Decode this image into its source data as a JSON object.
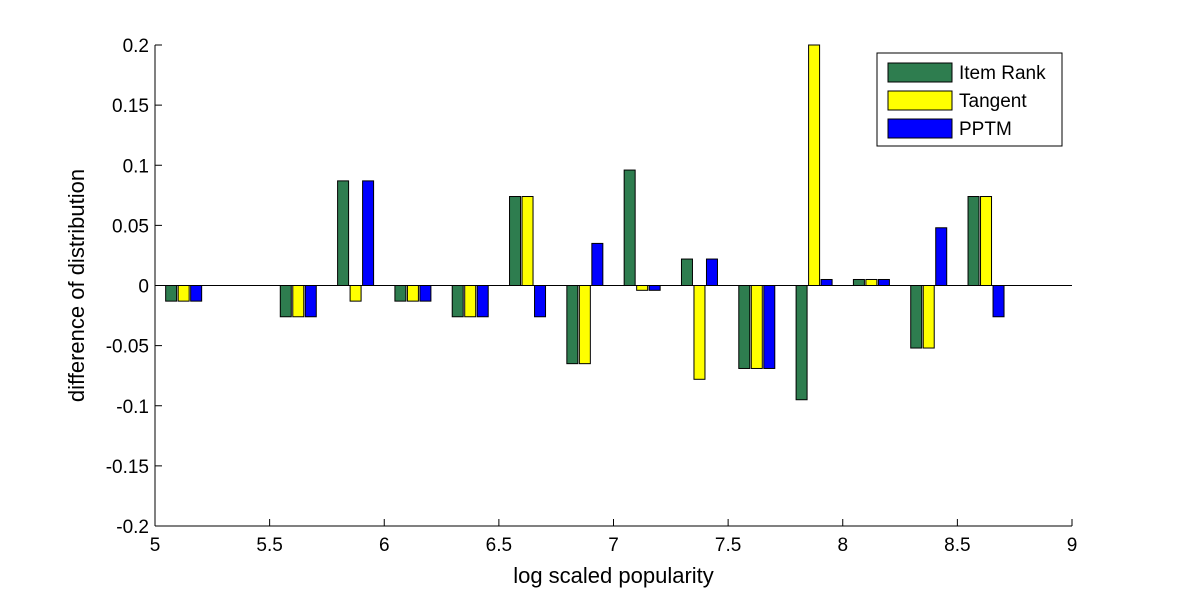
{
  "chart_data": {
    "type": "bar",
    "title": "",
    "xlabel": "log scaled popularity",
    "ylabel": "difference of distribution",
    "xlim": [
      5,
      9
    ],
    "ylim": [
      -0.2,
      0.2
    ],
    "xticks": [
      "5",
      "5.5",
      "6",
      "6.5",
      "7",
      "7.5",
      "8",
      "8.5",
      "9"
    ],
    "yticks": [
      "-0.2",
      "-0.15",
      "-0.1",
      "-0.05",
      "0",
      "0.05",
      "0.1",
      "0.15",
      "0.2"
    ],
    "xtick_values": [
      5,
      5.5,
      6,
      6.5,
      7,
      7.5,
      8,
      8.5,
      9
    ],
    "ytick_values": [
      -0.2,
      -0.15,
      -0.1,
      -0.05,
      0,
      0.05,
      0.1,
      0.15,
      0.2
    ],
    "grid": false,
    "legend_position": "top-right",
    "x": [
      5.125,
      5.625,
      5.875,
      6.125,
      6.375,
      6.625,
      6.875,
      7.125,
      7.375,
      7.625,
      7.875,
      8.125,
      8.375,
      8.625
    ],
    "series": [
      {
        "name": "Item Rank",
        "color": "#2e7d4f",
        "values": [
          -0.013,
          -0.026,
          0.087,
          -0.013,
          -0.026,
          0.074,
          -0.065,
          0.096,
          0.022,
          -0.069,
          -0.095,
          0.005,
          -0.052,
          0.074
        ]
      },
      {
        "name": "Tangent",
        "color": "#ffff00",
        "values": [
          -0.013,
          -0.026,
          -0.013,
          -0.013,
          -0.026,
          0.074,
          -0.065,
          -0.004,
          -0.078,
          -0.069,
          0.2,
          0.005,
          -0.052,
          0.074
        ]
      },
      {
        "name": "PPTM",
        "color": "#0000ff",
        "values": [
          -0.013,
          -0.026,
          0.087,
          -0.013,
          -0.026,
          -0.026,
          0.035,
          -0.004,
          0.022,
          -0.069,
          0.005,
          0.005,
          0.048,
          -0.026
        ]
      }
    ]
  }
}
